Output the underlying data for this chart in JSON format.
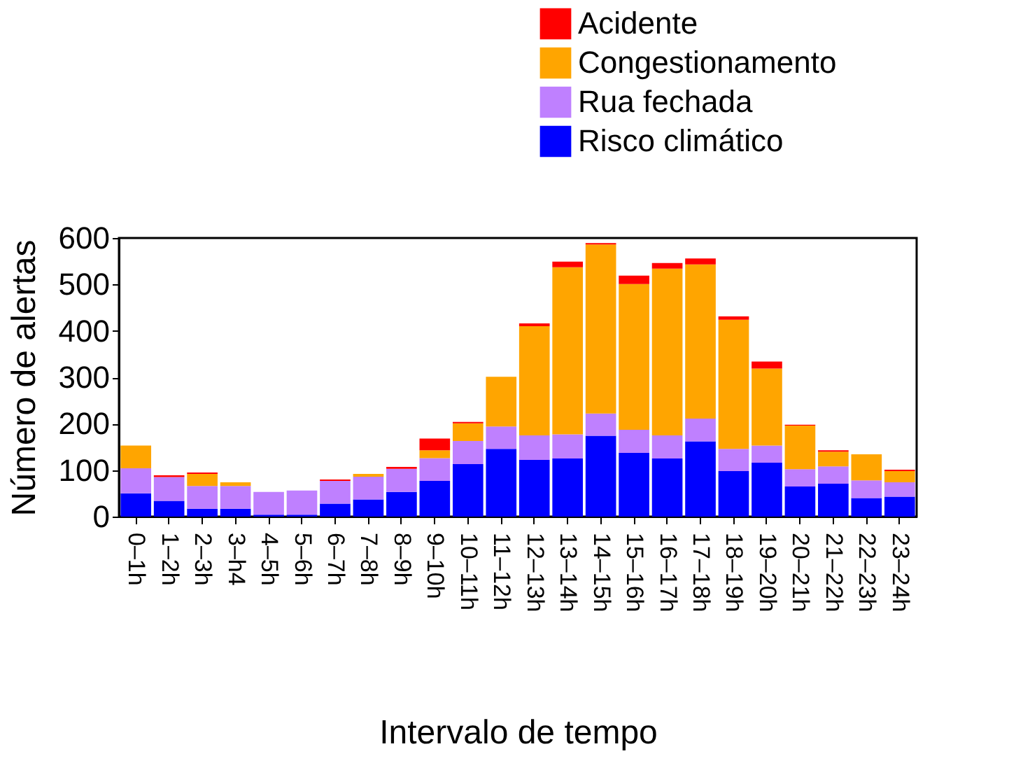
{
  "chart_data": {
    "type": "bar",
    "stacked": true,
    "xlabel": "Intervalo de tempo",
    "ylabel": "Número de alertas",
    "categories": [
      "0–1h",
      "1–2h",
      "2–3h",
      "3–h4",
      "4–5h",
      "5–6h",
      "6–7h",
      "7–8h",
      "8–9h",
      "9–10h",
      "10–11h",
      "11–12h",
      "12–13h",
      "13–14h",
      "14–15h",
      "15–16h",
      "16–17h",
      "17–18h",
      "18–19h",
      "19–20h",
      "20–21h",
      "21–22h",
      "22–23h",
      "23–24h"
    ],
    "series": [
      {
        "name": "Risco climático",
        "color": "#0000ff",
        "values": [
          50,
          34,
          17,
          17,
          4,
          4,
          28,
          37,
          53,
          77,
          113,
          146,
          122,
          125,
          174,
          137,
          125,
          162,
          98,
          116,
          65,
          71,
          40,
          43
        ]
      },
      {
        "name": "Rua fechada",
        "color": "#bf80ff",
        "values": [
          54,
          51,
          49,
          49,
          49,
          52,
          49,
          49,
          50,
          49,
          50,
          48,
          53,
          52,
          48,
          50,
          50,
          49,
          48,
          37,
          37,
          37,
          38,
          31
        ]
      },
      {
        "name": "Congestionamento",
        "color": "#ffa500",
        "values": [
          49,
          0,
          26,
          8,
          0,
          0,
          0,
          6,
          0,
          17,
          38,
          107,
          235,
          360,
          364,
          314,
          359,
          332,
          278,
          166,
          94,
          32,
          56,
          24
        ]
      },
      {
        "name": "Acidente",
        "color": "#ff0000",
        "values": [
          0,
          4,
          3,
          0,
          0,
          0,
          3,
          0,
          4,
          25,
          3,
          0,
          6,
          12,
          3,
          18,
          12,
          13,
          7,
          15,
          2,
          3,
          0,
          3
        ]
      }
    ],
    "ylim": [
      0,
      600
    ],
    "yticks": [
      0,
      100,
      200,
      300,
      400,
      500,
      600
    ],
    "grid": false,
    "legend": "top right"
  }
}
